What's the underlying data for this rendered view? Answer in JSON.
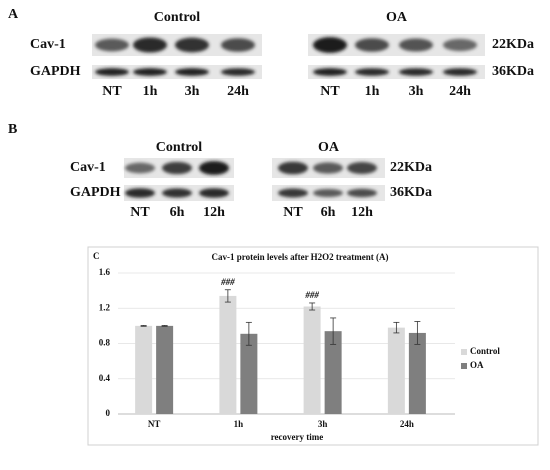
{
  "panel_a": {
    "label": "A",
    "groups": [
      "Control",
      "OA"
    ],
    "rows": [
      "Cav-1",
      "GAPDH"
    ],
    "sizes": [
      "22KDa",
      "36KDa"
    ],
    "lanes": [
      "NT",
      "1h",
      "3h",
      "24h"
    ]
  },
  "panel_b": {
    "label": "B",
    "groups": [
      "Control",
      "OA"
    ],
    "rows": [
      "Cav-1",
      "GAPDH"
    ],
    "sizes": [
      "22KDa",
      "36KDa"
    ],
    "lanes": [
      "NT",
      "6h",
      "12h"
    ]
  },
  "chart_data": {
    "type": "bar",
    "panel_label": "C",
    "title": "Cav-1 protein levels after H2O2 treatment (A)",
    "x_label": "recovery time",
    "categories": [
      "NT",
      "1h",
      "3h",
      "24h"
    ],
    "series": [
      {
        "name": "Control",
        "color": "#d9d9d9",
        "values": [
          1.0,
          1.34,
          1.22,
          0.98
        ],
        "errors": [
          0.005,
          0.07,
          0.04,
          0.06
        ],
        "significance": [
          null,
          "###",
          "###",
          null
        ]
      },
      {
        "name": "OA",
        "color": "#7f7f7f",
        "values": [
          1.0,
          0.91,
          0.94,
          0.92
        ],
        "errors": [
          0.005,
          0.13,
          0.15,
          0.13
        ]
      }
    ],
    "ylim": [
      0,
      1.6
    ],
    "yticks": [
      0,
      0.4,
      0.8,
      1.2,
      1.6
    ],
    "grid": true,
    "legend": "right"
  }
}
